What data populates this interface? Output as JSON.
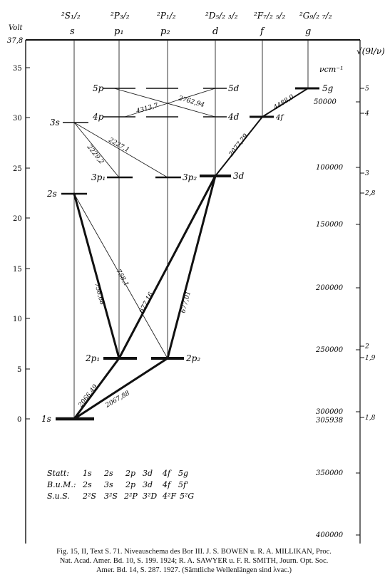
{
  "header": {
    "volt_label": "Volt",
    "volt_top_value": "37,8",
    "columns": [
      {
        "term": "²S₁/₂",
        "letter": "s"
      },
      {
        "term": "²P₃/₂",
        "letter": "p₁"
      },
      {
        "term": "²P₁/₂",
        "letter": "p₂"
      },
      {
        "term": "²D₅/₂ ₃/₂",
        "letter": "d"
      },
      {
        "term": "²F₇/₂ ₅/₂",
        "letter": "f"
      },
      {
        "term": "²G₉/₂ ₇/₂",
        "letter": "g"
      }
    ]
  },
  "left_axis": {
    "ticks": [
      "35",
      "30",
      "25",
      "20",
      "15",
      "10",
      "5",
      "0"
    ]
  },
  "right_axis": {
    "sqrt_label": "√(9l/ν)",
    "unit_label": "νcm⁻¹",
    "ticks": [
      "50000",
      "100000",
      "150000",
      "200000",
      "250000",
      "300000",
      "305938",
      "350000",
      "400000"
    ],
    "sqrt_ticks": [
      "5",
      "4",
      "3",
      "2,8",
      "2",
      "1,9",
      "1,8"
    ]
  },
  "levels": [
    {
      "label": "5p"
    },
    {
      "label": "5d"
    },
    {
      "label": "5g"
    },
    {
      "label": "4p"
    },
    {
      "label": "4d"
    },
    {
      "label": "4f"
    },
    {
      "label": "3s"
    },
    {
      "label": "3p₁"
    },
    {
      "label": "3p₂"
    },
    {
      "label": "3d"
    },
    {
      "label": "2s"
    },
    {
      "label": "2p₁"
    },
    {
      "label": "2p₂"
    },
    {
      "label": "1s"
    }
  ],
  "transitions": [
    {
      "label": "4313,7"
    },
    {
      "label": "2762,94"
    },
    {
      "label": "2077,79"
    },
    {
      "label": "4488,0"
    },
    {
      "label": "2229,2"
    },
    {
      "label": "2227,1"
    },
    {
      "label": "758,68"
    },
    {
      "label": "758,1"
    },
    {
      "label": "677,16"
    },
    {
      "label": "677,01"
    },
    {
      "label": "2066,49"
    },
    {
      "label": "2067,88"
    }
  ],
  "notation_table": {
    "rows": [
      {
        "label": "Statt:",
        "values": [
          "1s",
          "2s",
          "2p",
          "3d",
          "4f",
          "5g"
        ]
      },
      {
        "label": "B.u.M.:",
        "values": [
          "2s",
          "3s",
          "2p",
          "3d",
          "4f",
          "5f'"
        ]
      },
      {
        "label": "S.u.S.",
        "values": [
          "2²S",
          "3²S",
          "2²P",
          "3²D",
          "4²F",
          "5²G"
        ]
      }
    ]
  },
  "caption": {
    "line1": "Fig. 15, II, Text S. 71. Niveauschema des Bor III. J. S. BOWEN u. R. A. MILLIKAN, Proc.",
    "line2": "Nat. Acad. Amer. Bd. 10, S. 199. 1924; R. A. SAWYER u. F. R. SMITH, Journ. Opt. Soc.",
    "line3": "Amer. Bd. 14, S. 287. 1927. (Sämtliche Wellenlängen sind λvac.)"
  }
}
